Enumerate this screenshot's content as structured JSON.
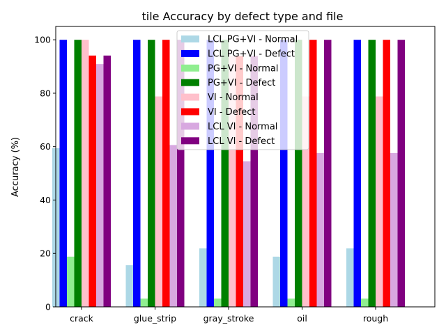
{
  "chart_data": {
    "type": "bar",
    "title": "tile Accuracy by defect type and file",
    "xlabel": "",
    "ylabel": "Accuracy (%)",
    "categories": [
      "crack",
      "glue_strip",
      "gray_stroke",
      "oil",
      "rough"
    ],
    "ylim": [
      0,
      105
    ],
    "yticks": [
      0,
      20,
      40,
      60,
      80,
      100
    ],
    "grid": false,
    "legend_position": "top-center",
    "series": [
      {
        "name": "LCL PG+VI - Normal",
        "color": "#add8e6",
        "values": [
          59.4,
          15.6,
          21.9,
          18.8,
          21.9
        ]
      },
      {
        "name": "LCL PG+VI - Defect",
        "color": "#0000ff",
        "values": [
          100,
          100,
          100,
          100,
          100
        ]
      },
      {
        "name": "PG+VI - Normal",
        "color": "#90ee90",
        "values": [
          18.8,
          3.1,
          3.1,
          3.1,
          3.1
        ]
      },
      {
        "name": "PG+VI - Defect",
        "color": "#008000",
        "values": [
          100,
          100,
          100,
          100,
          100
        ]
      },
      {
        "name": "VI - Normal",
        "color": "#ffc0cb",
        "values": [
          100,
          78.8,
          93.9,
          78.8,
          78.8
        ]
      },
      {
        "name": "VI - Defect",
        "color": "#ff0000",
        "values": [
          94.1,
          100,
          93.9,
          100,
          100
        ]
      },
      {
        "name": "LCL VI - Normal",
        "color": "#d8a8e0",
        "values": [
          90.9,
          60.6,
          54.5,
          57.6,
          57.6
        ]
      },
      {
        "name": "LCL VI - Defect",
        "color": "#800080",
        "values": [
          94.1,
          100,
          93.9,
          100,
          100
        ]
      }
    ]
  }
}
